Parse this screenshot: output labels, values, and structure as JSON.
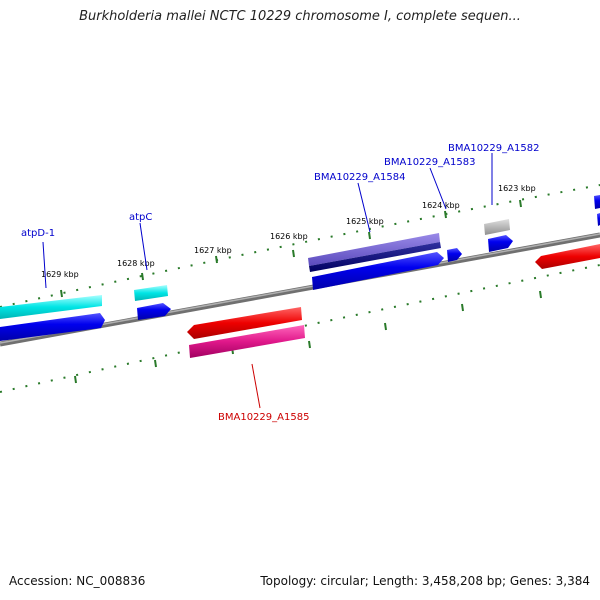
{
  "title": "Burkholderia mallei NCTC 10229 chromosome I, complete sequen...",
  "footer": {
    "accession": "Accession: NC_008836",
    "summary": "Topology: circular; Length: 3,458,208 bp; Genes: 3,384"
  },
  "ticks": [
    {
      "label": "1629 kbp"
    },
    {
      "label": "1628 kbp"
    },
    {
      "label": "1627 kbp"
    },
    {
      "label": "1626 kbp"
    },
    {
      "label": "1625 kbp"
    },
    {
      "label": "1624 kbp"
    },
    {
      "label": "1623 kbp"
    }
  ],
  "genes": [
    {
      "label": "atpD-1",
      "color": "#0000cc"
    },
    {
      "label": "atpC",
      "color": "#0000cc"
    },
    {
      "label": "BMA10229_A1584",
      "color": "#0000cc"
    },
    {
      "label": "BMA10229_A1583",
      "color": "#0000cc"
    },
    {
      "label": "BMA10229_A1582",
      "color": "#0000cc"
    },
    {
      "label": "BMA10229_A1585",
      "color": "#cc0000"
    }
  ],
  "colors": {
    "backbone": "#808080",
    "tick": "#2a7a2a",
    "cds_forward": "#0000ee",
    "gene_cyan": "#00e5e5",
    "gene_red": "#ee0000",
    "gene_magenta": "#e0188a",
    "gene_purple": "#6a5acd",
    "gene_navy": "#000080",
    "gene_gray": "#b0b0b0"
  }
}
